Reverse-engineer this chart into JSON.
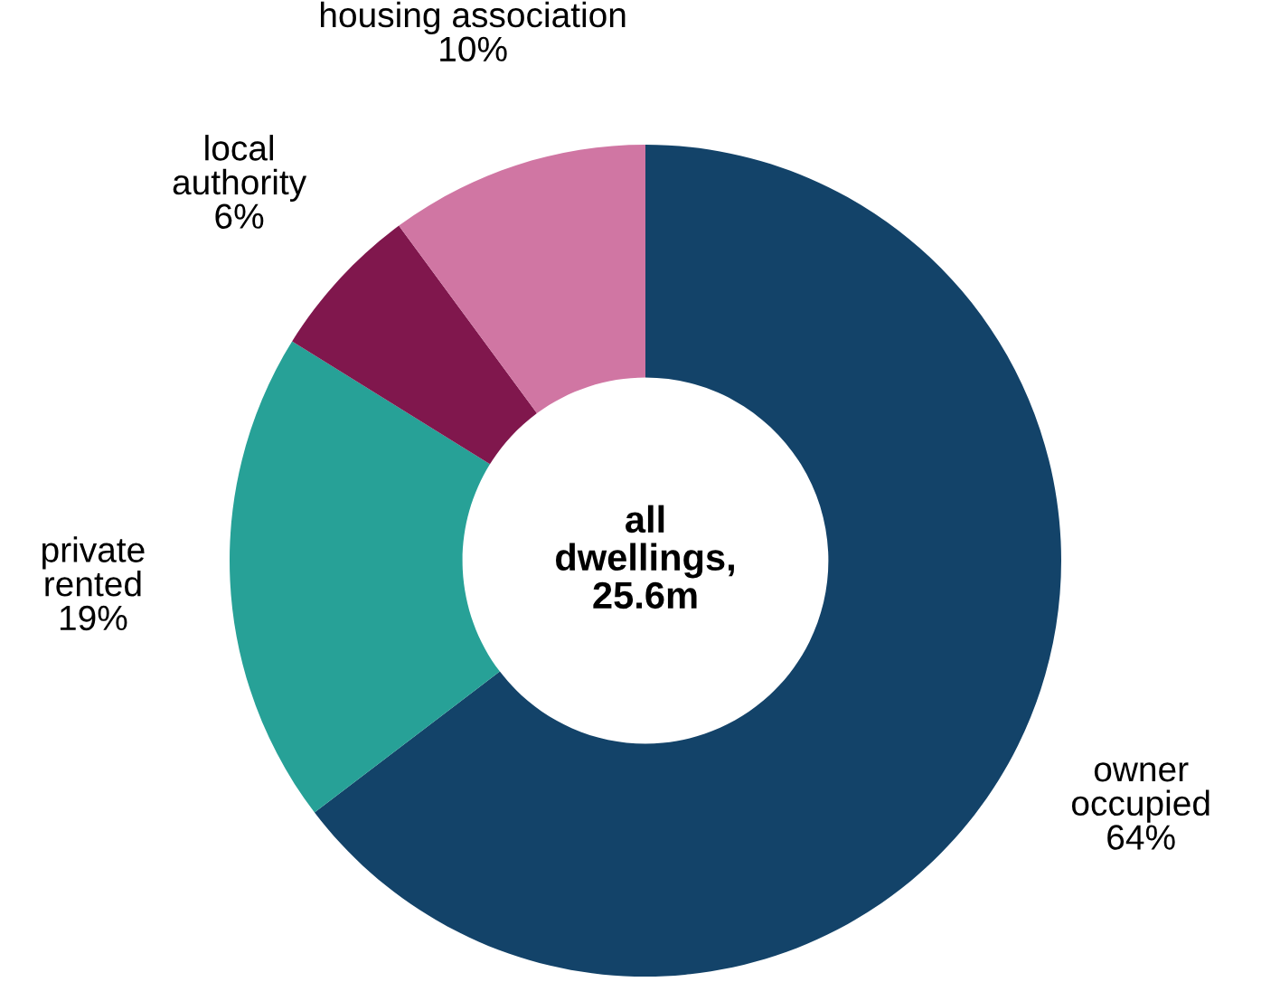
{
  "chart_data": {
    "type": "donut",
    "categories": [
      "owner\noccupied",
      "private\nrented",
      "local\nauthority",
      "housing association"
    ],
    "values": [
      64,
      19,
      6,
      10
    ],
    "value_labels": [
      "64%",
      "19%",
      "6%",
      "10%"
    ],
    "colors": [
      "#134369",
      "#27a197",
      "#80174d",
      "#d076a3"
    ],
    "annotations": [
      "all\ndwellings,\n25.6m"
    ]
  }
}
